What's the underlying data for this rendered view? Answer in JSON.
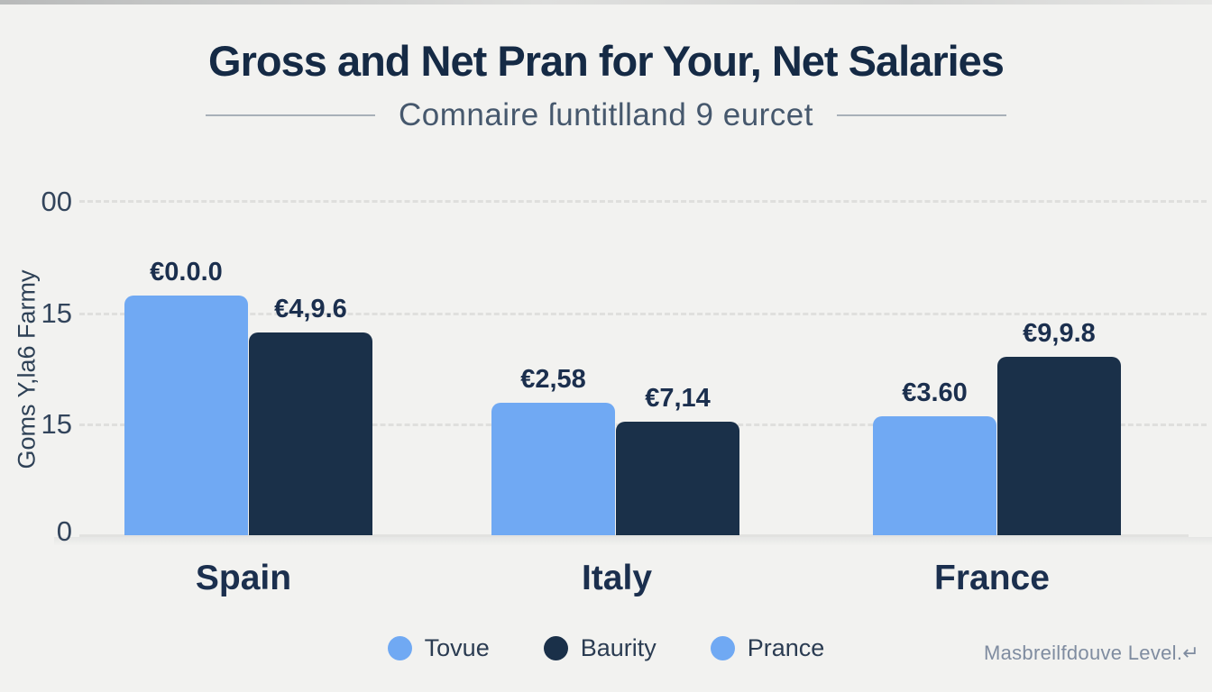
{
  "header": {
    "title": "Gross and Net Pran for Your, Net Salaries",
    "subtitle": "Comnaire ſuntitlland 9 eurcet"
  },
  "y_axis": {
    "label": "Goms Y,la6 Farmy",
    "ticks": [
      "00",
      "15",
      "15",
      "0"
    ]
  },
  "legend": [
    {
      "label": "Tovue",
      "color": "#70a9f3"
    },
    {
      "label": "Baurity",
      "color": "#1a3049"
    },
    {
      "label": "Prance",
      "color": "#70a9f3"
    }
  ],
  "footer": {
    "note": "Masbreilfdouve Level.↵"
  },
  "colors": {
    "background": "#f2f2f0",
    "bar_blue": "#70a9f3",
    "bar_navy": "#1a3049",
    "text_dark": "#1b2f4e",
    "text_muted": "#7f8ca0",
    "gridline": "#dcdcda"
  },
  "chart_data": {
    "type": "bar",
    "title": "Gross and Net Pran for Your, Net Salaries",
    "subtitle": "Comnaire ſuntitlland 9 eurcet",
    "categories": [
      "Spain",
      "Italy",
      "France"
    ],
    "series": [
      {
        "name": "Tovue",
        "color": "#70a9f3",
        "bar_labels": [
          "€0.0.0",
          "€2,58",
          "€3.60"
        ],
        "heights_pct_of_plot": [
          71.5,
          39.5,
          35.5
        ]
      },
      {
        "name": "Baurity",
        "color": "#1a3049",
        "bar_labels": [
          "€4,9.6",
          "€7,14",
          "€9,9.8"
        ],
        "heights_pct_of_plot": [
          60.5,
          33.9,
          53.2
        ]
      }
    ],
    "ylabel": "Goms Y,la6 Farmy",
    "y_tick_labels_top_to_bottom": [
      "00",
      "15",
      "15",
      "0"
    ],
    "grid": "horizontal dashed",
    "legend_position": "bottom-center",
    "currency_prefix": "€"
  }
}
